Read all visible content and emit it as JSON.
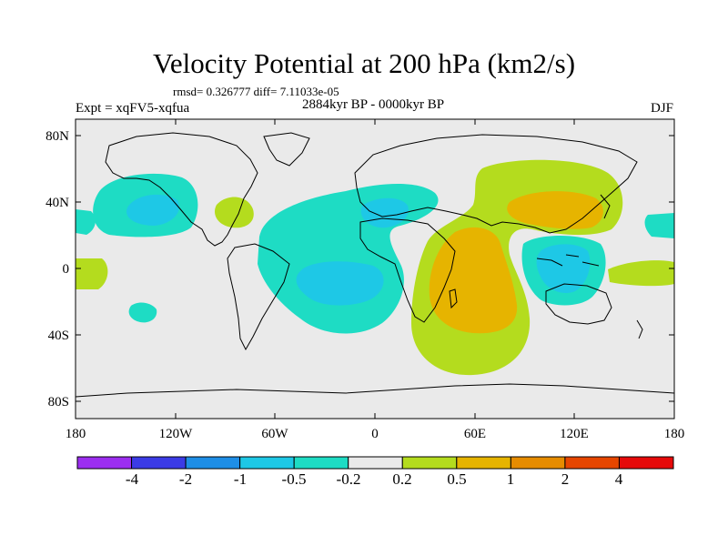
{
  "title": "Velocity Potential at 200 hPa (km2/s)",
  "stats": "rmsd= 0.326777 diff= 7.11033e-05",
  "left_string": "Expt = xqFV5-xqfua",
  "center_string": "2884kyr BP - 0000kyr BP",
  "right_string": "DJF",
  "x_ticks": [
    "180",
    "120W",
    "60W",
    "0",
    "60E",
    "120E",
    "180"
  ],
  "y_ticks": [
    "80N",
    "40N",
    "0",
    "40S",
    "80S"
  ],
  "colorbar": {
    "colors": [
      "#9c2ef0",
      "#3b3be6",
      "#1e8ee6",
      "#1ec8e6",
      "#1edcc4",
      "#eaeaea",
      "#b4dc1e",
      "#e6b400",
      "#e68c00",
      "#e64600",
      "#e60a0a"
    ],
    "labels": [
      "-4",
      "-2",
      "-1",
      "-0.5",
      "-0.2",
      "0.2",
      "0.5",
      "1",
      "2",
      "4"
    ]
  },
  "colors": {
    "ocean_land": "#eaeaea",
    "neg_weak": "#1edcc4",
    "neg_mod": "#1ec8e6",
    "pos_weak": "#b4dc1e",
    "pos_mod": "#e6b400"
  }
}
